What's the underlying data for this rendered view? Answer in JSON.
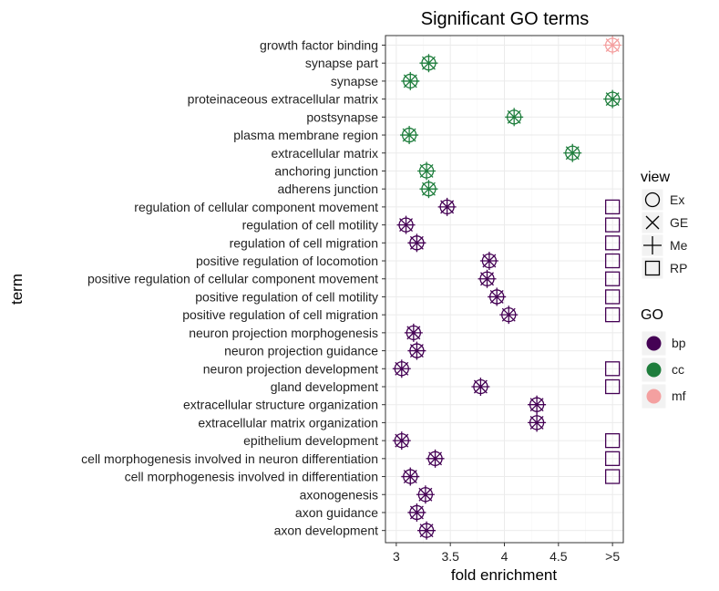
{
  "chart_data": {
    "type": "scatter",
    "title": "Significant GO terms",
    "xlabel": "fold enrichment",
    "ylabel": "term",
    "xlim": [
      2.9,
      5.1
    ],
    "x_ticks": [
      {
        "value": 3,
        "label": "3"
      },
      {
        "value": 3.5,
        "label": "3.5"
      },
      {
        "value": 4,
        "label": "4"
      },
      {
        "value": 4.5,
        "label": "4.5"
      },
      {
        "value": 5,
        "label": ">5"
      }
    ],
    "grid": true,
    "colors": {
      "bp": "#440154",
      "cc": "#1e7d3c",
      "mf": "#f4a0a0",
      "grid": "#ebebeb",
      "panel_border": "#333333"
    },
    "legend_view": {
      "title": "view",
      "items": [
        {
          "key": "Ex",
          "label": "Ex",
          "shape": "circle"
        },
        {
          "key": "GE",
          "label": "GE",
          "shape": "cross"
        },
        {
          "key": "Me",
          "label": "Me",
          "shape": "plus"
        },
        {
          "key": "RP",
          "label": "RP",
          "shape": "square"
        }
      ]
    },
    "legend_go": {
      "title": "GO",
      "items": [
        {
          "key": "bp",
          "label": "bp"
        },
        {
          "key": "cc",
          "label": "cc"
        },
        {
          "key": "mf",
          "label": "mf"
        }
      ]
    },
    "terms": [
      {
        "term": "growth factor binding",
        "go": "mf",
        "x": 5.0,
        "views": [
          "Ex",
          "GE",
          "Me"
        ],
        "rp": false
      },
      {
        "term": "synapse part",
        "go": "cc",
        "x": 3.3,
        "views": [
          "Ex",
          "GE",
          "Me"
        ],
        "rp": false
      },
      {
        "term": "synapse",
        "go": "cc",
        "x": 3.13,
        "views": [
          "Ex",
          "GE",
          "Me"
        ],
        "rp": false
      },
      {
        "term": "proteinaceous extracellular matrix",
        "go": "cc",
        "x": 5.0,
        "views": [
          "Ex",
          "GE",
          "Me"
        ],
        "rp": false
      },
      {
        "term": "postsynapse",
        "go": "cc",
        "x": 4.09,
        "views": [
          "Ex",
          "GE",
          "Me"
        ],
        "rp": false
      },
      {
        "term": "plasma membrane region",
        "go": "cc",
        "x": 3.12,
        "views": [
          "Ex",
          "GE",
          "Me"
        ],
        "rp": false
      },
      {
        "term": "extracellular matrix",
        "go": "cc",
        "x": 4.63,
        "views": [
          "Ex",
          "GE",
          "Me"
        ],
        "rp": false
      },
      {
        "term": "anchoring junction",
        "go": "cc",
        "x": 3.28,
        "views": [
          "Ex",
          "GE",
          "Me"
        ],
        "rp": false
      },
      {
        "term": "adherens junction",
        "go": "cc",
        "x": 3.3,
        "views": [
          "Ex",
          "GE",
          "Me"
        ],
        "rp": false
      },
      {
        "term": "regulation of cellular component movement",
        "go": "bp",
        "x": 3.47,
        "views": [
          "Ex",
          "GE",
          "Me"
        ],
        "rp": true
      },
      {
        "term": "regulation of cell motility",
        "go": "bp",
        "x": 3.09,
        "views": [
          "Ex",
          "GE",
          "Me"
        ],
        "rp": true
      },
      {
        "term": "regulation of cell migration",
        "go": "bp",
        "x": 3.19,
        "views": [
          "Ex",
          "GE",
          "Me"
        ],
        "rp": true
      },
      {
        "term": "positive regulation of locomotion",
        "go": "bp",
        "x": 3.86,
        "views": [
          "Ex",
          "GE",
          "Me"
        ],
        "rp": true
      },
      {
        "term": "positive regulation of cellular component movement",
        "go": "bp",
        "x": 3.84,
        "views": [
          "Ex",
          "GE",
          "Me"
        ],
        "rp": true
      },
      {
        "term": "positive regulation of cell motility",
        "go": "bp",
        "x": 3.93,
        "views": [
          "Ex",
          "GE",
          "Me"
        ],
        "rp": true
      },
      {
        "term": "positive regulation of cell migration",
        "go": "bp",
        "x": 4.04,
        "views": [
          "Ex",
          "GE",
          "Me"
        ],
        "rp": true
      },
      {
        "term": "neuron projection morphogenesis",
        "go": "bp",
        "x": 3.16,
        "views": [
          "Ex",
          "GE",
          "Me"
        ],
        "rp": false
      },
      {
        "term": "neuron projection guidance",
        "go": "bp",
        "x": 3.19,
        "views": [
          "Ex",
          "GE",
          "Me"
        ],
        "rp": false
      },
      {
        "term": "neuron projection development",
        "go": "bp",
        "x": 3.05,
        "views": [
          "Ex",
          "GE",
          "Me"
        ],
        "rp": true
      },
      {
        "term": "gland development",
        "go": "bp",
        "x": 3.78,
        "views": [
          "Ex",
          "GE",
          "Me"
        ],
        "rp": true
      },
      {
        "term": "extracellular structure organization",
        "go": "bp",
        "x": 4.3,
        "views": [
          "Ex",
          "GE",
          "Me"
        ],
        "rp": false
      },
      {
        "term": "extracellular matrix organization",
        "go": "bp",
        "x": 4.3,
        "views": [
          "Ex",
          "GE",
          "Me"
        ],
        "rp": false
      },
      {
        "term": "epithelium development",
        "go": "bp",
        "x": 3.05,
        "views": [
          "Ex",
          "GE",
          "Me"
        ],
        "rp": true
      },
      {
        "term": "cell morphogenesis involved in neuron differentiation",
        "go": "bp",
        "x": 3.36,
        "views": [
          "Ex",
          "GE",
          "Me"
        ],
        "rp": true
      },
      {
        "term": "cell morphogenesis involved in differentiation",
        "go": "bp",
        "x": 3.13,
        "views": [
          "Ex",
          "GE",
          "Me"
        ],
        "rp": true
      },
      {
        "term": "axonogenesis",
        "go": "bp",
        "x": 3.27,
        "views": [
          "Ex",
          "GE",
          "Me"
        ],
        "rp": false
      },
      {
        "term": "axon guidance",
        "go": "bp",
        "x": 3.19,
        "views": [
          "Ex",
          "GE",
          "Me"
        ],
        "rp": false
      },
      {
        "term": "axon development",
        "go": "bp",
        "x": 3.28,
        "views": [
          "Ex",
          "GE",
          "Me"
        ],
        "rp": false
      }
    ]
  }
}
